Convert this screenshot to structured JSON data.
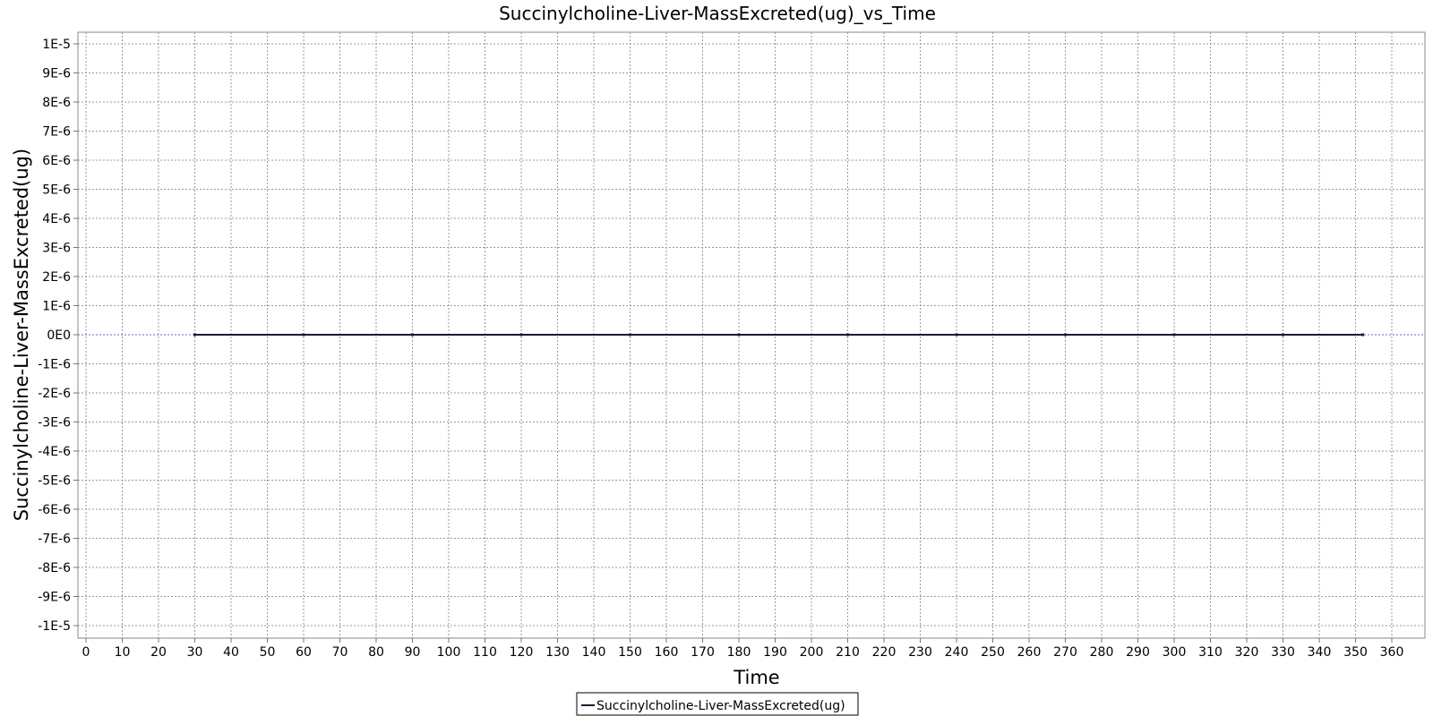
{
  "chart_data": {
    "type": "line",
    "title": "Succinylcholine-Liver-MassExcreted(ug)_vs_Time",
    "xlabel": "Time",
    "ylabel": "Succinylcholine-Liver-MassExcreted(ug)",
    "xlim": [
      0,
      370
    ],
    "ylim": [
      -1.05e-05,
      1.05e-05
    ],
    "x_ticks": [
      0,
      10,
      20,
      30,
      40,
      50,
      60,
      70,
      80,
      90,
      100,
      110,
      120,
      130,
      140,
      150,
      160,
      170,
      180,
      190,
      200,
      210,
      220,
      230,
      240,
      250,
      260,
      270,
      280,
      290,
      300,
      310,
      320,
      330,
      340,
      350,
      360
    ],
    "y_ticks": [
      1e-05,
      9e-06,
      8e-06,
      7e-06,
      6e-06,
      5e-06,
      4e-06,
      3e-06,
      2e-06,
      1e-06,
      0,
      -1e-06,
      -2e-06,
      -3e-06,
      -4e-06,
      -5e-06,
      -6e-06,
      -7e-06,
      -8e-06,
      -9e-06,
      -1e-05
    ],
    "y_tick_labels": [
      "1E-5",
      "9E-6",
      "8E-6",
      "7E-6",
      "6E-6",
      "5E-6",
      "4E-6",
      "3E-6",
      "2E-6",
      "1E-6",
      "0E0",
      "-1E-6",
      "-2E-6",
      "-3E-6",
      "-4E-6",
      "-5E-6",
      "-6E-6",
      "-7E-6",
      "-8E-6",
      "-9E-6",
      "-1E-5"
    ],
    "grid": true,
    "legend_position": "bottom-center",
    "series": [
      {
        "name": "Succinylcholine-Liver-MassExcreted(ug)",
        "color": "#1a1a3a",
        "x": [
          30,
          60,
          90,
          120,
          150,
          180,
          210,
          240,
          270,
          300,
          330,
          352
        ],
        "y": [
          0,
          0,
          0,
          0,
          0,
          0,
          0,
          0,
          0,
          0,
          0,
          0
        ]
      }
    ]
  }
}
